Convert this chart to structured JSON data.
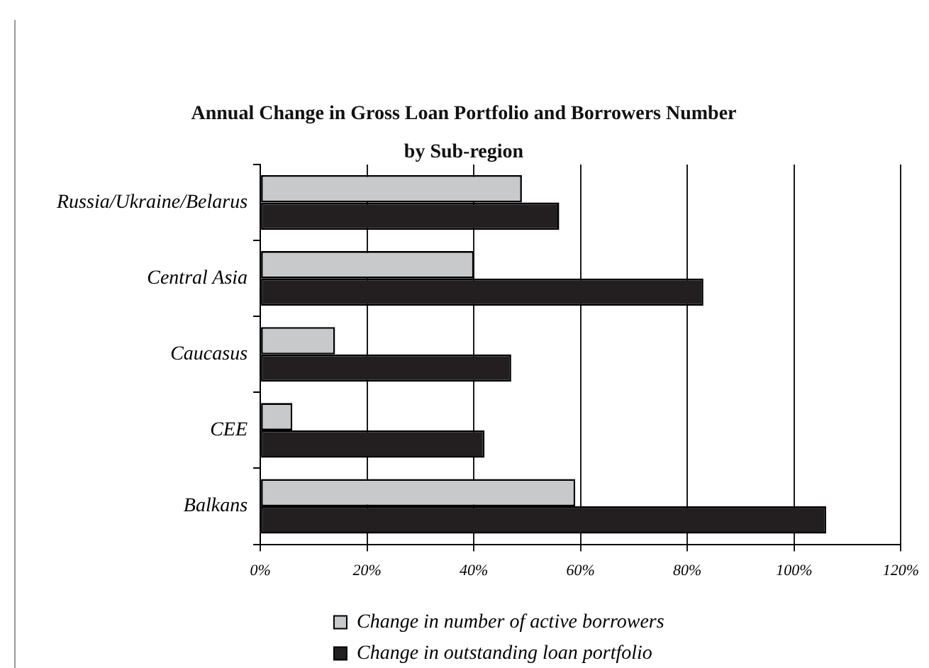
{
  "chart_data": {
    "type": "bar",
    "orientation": "horizontal",
    "title": "Annual Change in Gross Loan Portfolio and Borrowers Number by Sub-region",
    "categories": [
      "Russia/Ukraine/Belarus",
      "Central Asia",
      "Caucasus",
      "CEE",
      "Balkans"
    ],
    "series": [
      {
        "name": "Change in number of active borrowers",
        "color": "#c8c9cb",
        "values": [
          49,
          40,
          14,
          6,
          59
        ]
      },
      {
        "name": "Change in outstanding loan portfolio",
        "color": "#231f20",
        "values": [
          56,
          83,
          47,
          42,
          106
        ]
      }
    ],
    "xlim": [
      0,
      120
    ],
    "xticks": [
      {
        "value": 0,
        "label": "0%"
      },
      {
        "value": 20,
        "label": "20%"
      },
      {
        "value": 40,
        "label": "40%"
      },
      {
        "value": 60,
        "label": "60%"
      },
      {
        "value": 80,
        "label": "80%"
      },
      {
        "value": 100,
        "label": "100%"
      },
      {
        "value": 120,
        "label": "120%"
      }
    ],
    "grid": "x",
    "legend": "bottom"
  }
}
